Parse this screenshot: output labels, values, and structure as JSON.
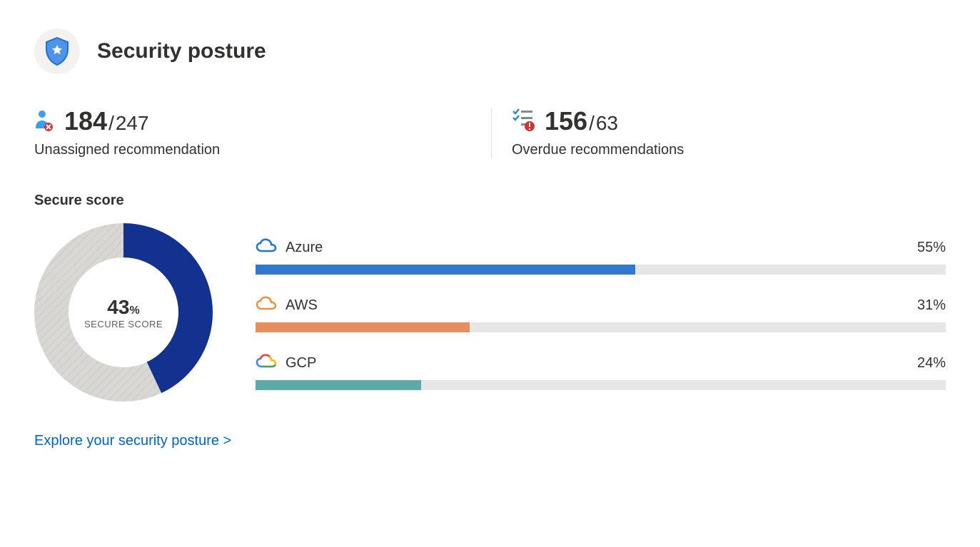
{
  "header": {
    "title": "Security posture",
    "icon_bg": "#f3f2f1",
    "shield_fill": "#4f94e8",
    "shield_stroke": "#1f6fd0"
  },
  "stats": {
    "unassigned": {
      "big": "184",
      "slash": "/",
      "small": "247",
      "label": "Unassigned recommendation",
      "icon_primary": "#3aa0e9",
      "icon_badge": "#d13438"
    },
    "overdue": {
      "big": "156",
      "slash": "/",
      "small": "63",
      "label": "Overdue recommendations",
      "icon_check": "#2b88d8",
      "icon_line": "#8a8886",
      "icon_badge": "#d13438"
    }
  },
  "secure_score": {
    "title": "Secure score",
    "donut": {
      "percent_num": "43",
      "percent_sign": "%",
      "sublabel": "SECURE SCORE",
      "value": 43,
      "fill_color": "#13328f",
      "track_color": "#d9d7d4",
      "size": 250,
      "thickness": 48
    },
    "providers": [
      {
        "name": "Azure",
        "pct_label": "55%",
        "pct": 55,
        "bar_color": "#3179cf",
        "track_color": "#e6e6e6",
        "icon": "azure"
      },
      {
        "name": "AWS",
        "pct_label": "31%",
        "pct": 31,
        "bar_color": "#e78e5f",
        "track_color": "#e6e6e6",
        "icon": "aws"
      },
      {
        "name": "GCP",
        "pct_label": "24%",
        "pct": 24,
        "bar_color": "#5aaaa8",
        "track_color": "#e6e6e6",
        "icon": "gcp"
      }
    ]
  },
  "explore": {
    "label": "Explore your security posture >",
    "color": "#0064bf"
  }
}
